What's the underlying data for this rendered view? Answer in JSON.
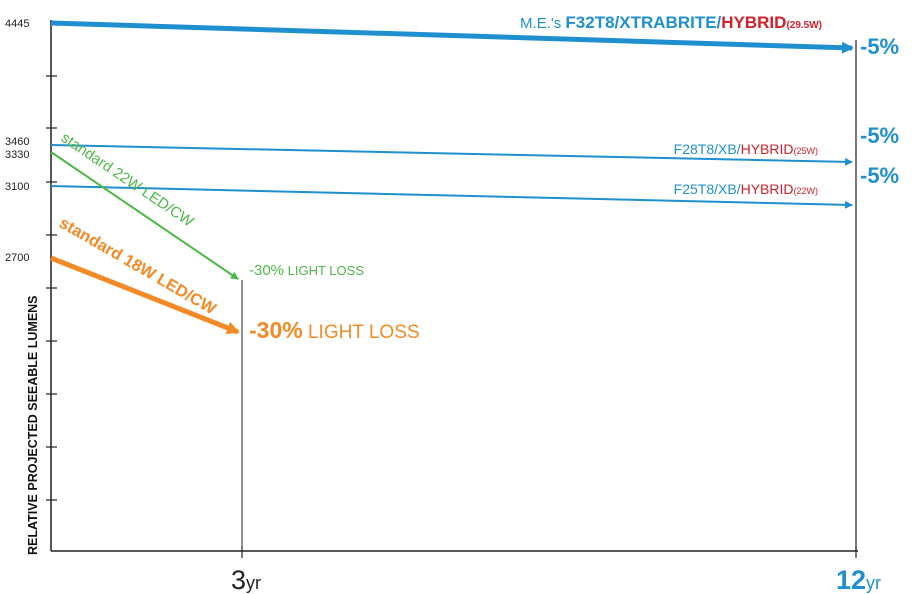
{
  "colors": {
    "blue": "#1f8fd0",
    "green": "#4db848",
    "orange": "#f48a25",
    "red": "#d3202b",
    "axis": "#222222"
  },
  "chart_data": {
    "type": "line",
    "ylabel": "RELATIVE PROJECTED SEEABLE LUMENS",
    "y_tick_labels": [
      "4445",
      "3460",
      "3330",
      "3100",
      "2700"
    ],
    "x_ticks": [
      {
        "x": 3,
        "num": "3",
        "unit": "yr"
      },
      {
        "x": 12,
        "num": "12",
        "unit": "yr"
      }
    ],
    "series": [
      {
        "key": "f32",
        "color_key": "blue",
        "x": [
          0,
          12
        ],
        "y": [
          4445,
          4223
        ],
        "label": {
          "prefix": "M.E.'s ",
          "lamp": "F32T8/XTRABRITE/",
          "hybrid": "HYBRID",
          "watt": "(29.5W)"
        },
        "end_label": "-5%"
      },
      {
        "key": "f28",
        "color_key": "blue",
        "x": [
          0,
          12
        ],
        "y": [
          3460,
          3287
        ],
        "label": {
          "lamp": "F28T8/XB/",
          "hybrid": "HYBRID",
          "watt": "(25W)"
        },
        "end_label": "-5%"
      },
      {
        "key": "f25",
        "color_key": "blue",
        "x": [
          0,
          12
        ],
        "y": [
          3100,
          2945
        ],
        "label": {
          "lamp": "F25T8/XB/",
          "hybrid": "HYBRID",
          "watt": "(22W)"
        },
        "end_label": "-5%"
      },
      {
        "key": "led22",
        "color_key": "green",
        "x": [
          0,
          3
        ],
        "y": [
          3330,
          2331
        ],
        "label": {
          "text": "standard 22W LED/CW"
        },
        "end_label": {
          "pct": "-30%",
          "text": " LIGHT LOSS"
        }
      },
      {
        "key": "led18",
        "color_key": "orange",
        "x": [
          0,
          3
        ],
        "y": [
          2700,
          1890
        ],
        "label": {
          "text": "standard 18W LED/CW"
        },
        "end_label": {
          "pct": "-30%",
          "text": " LIGHT LOSS"
        }
      }
    ]
  }
}
